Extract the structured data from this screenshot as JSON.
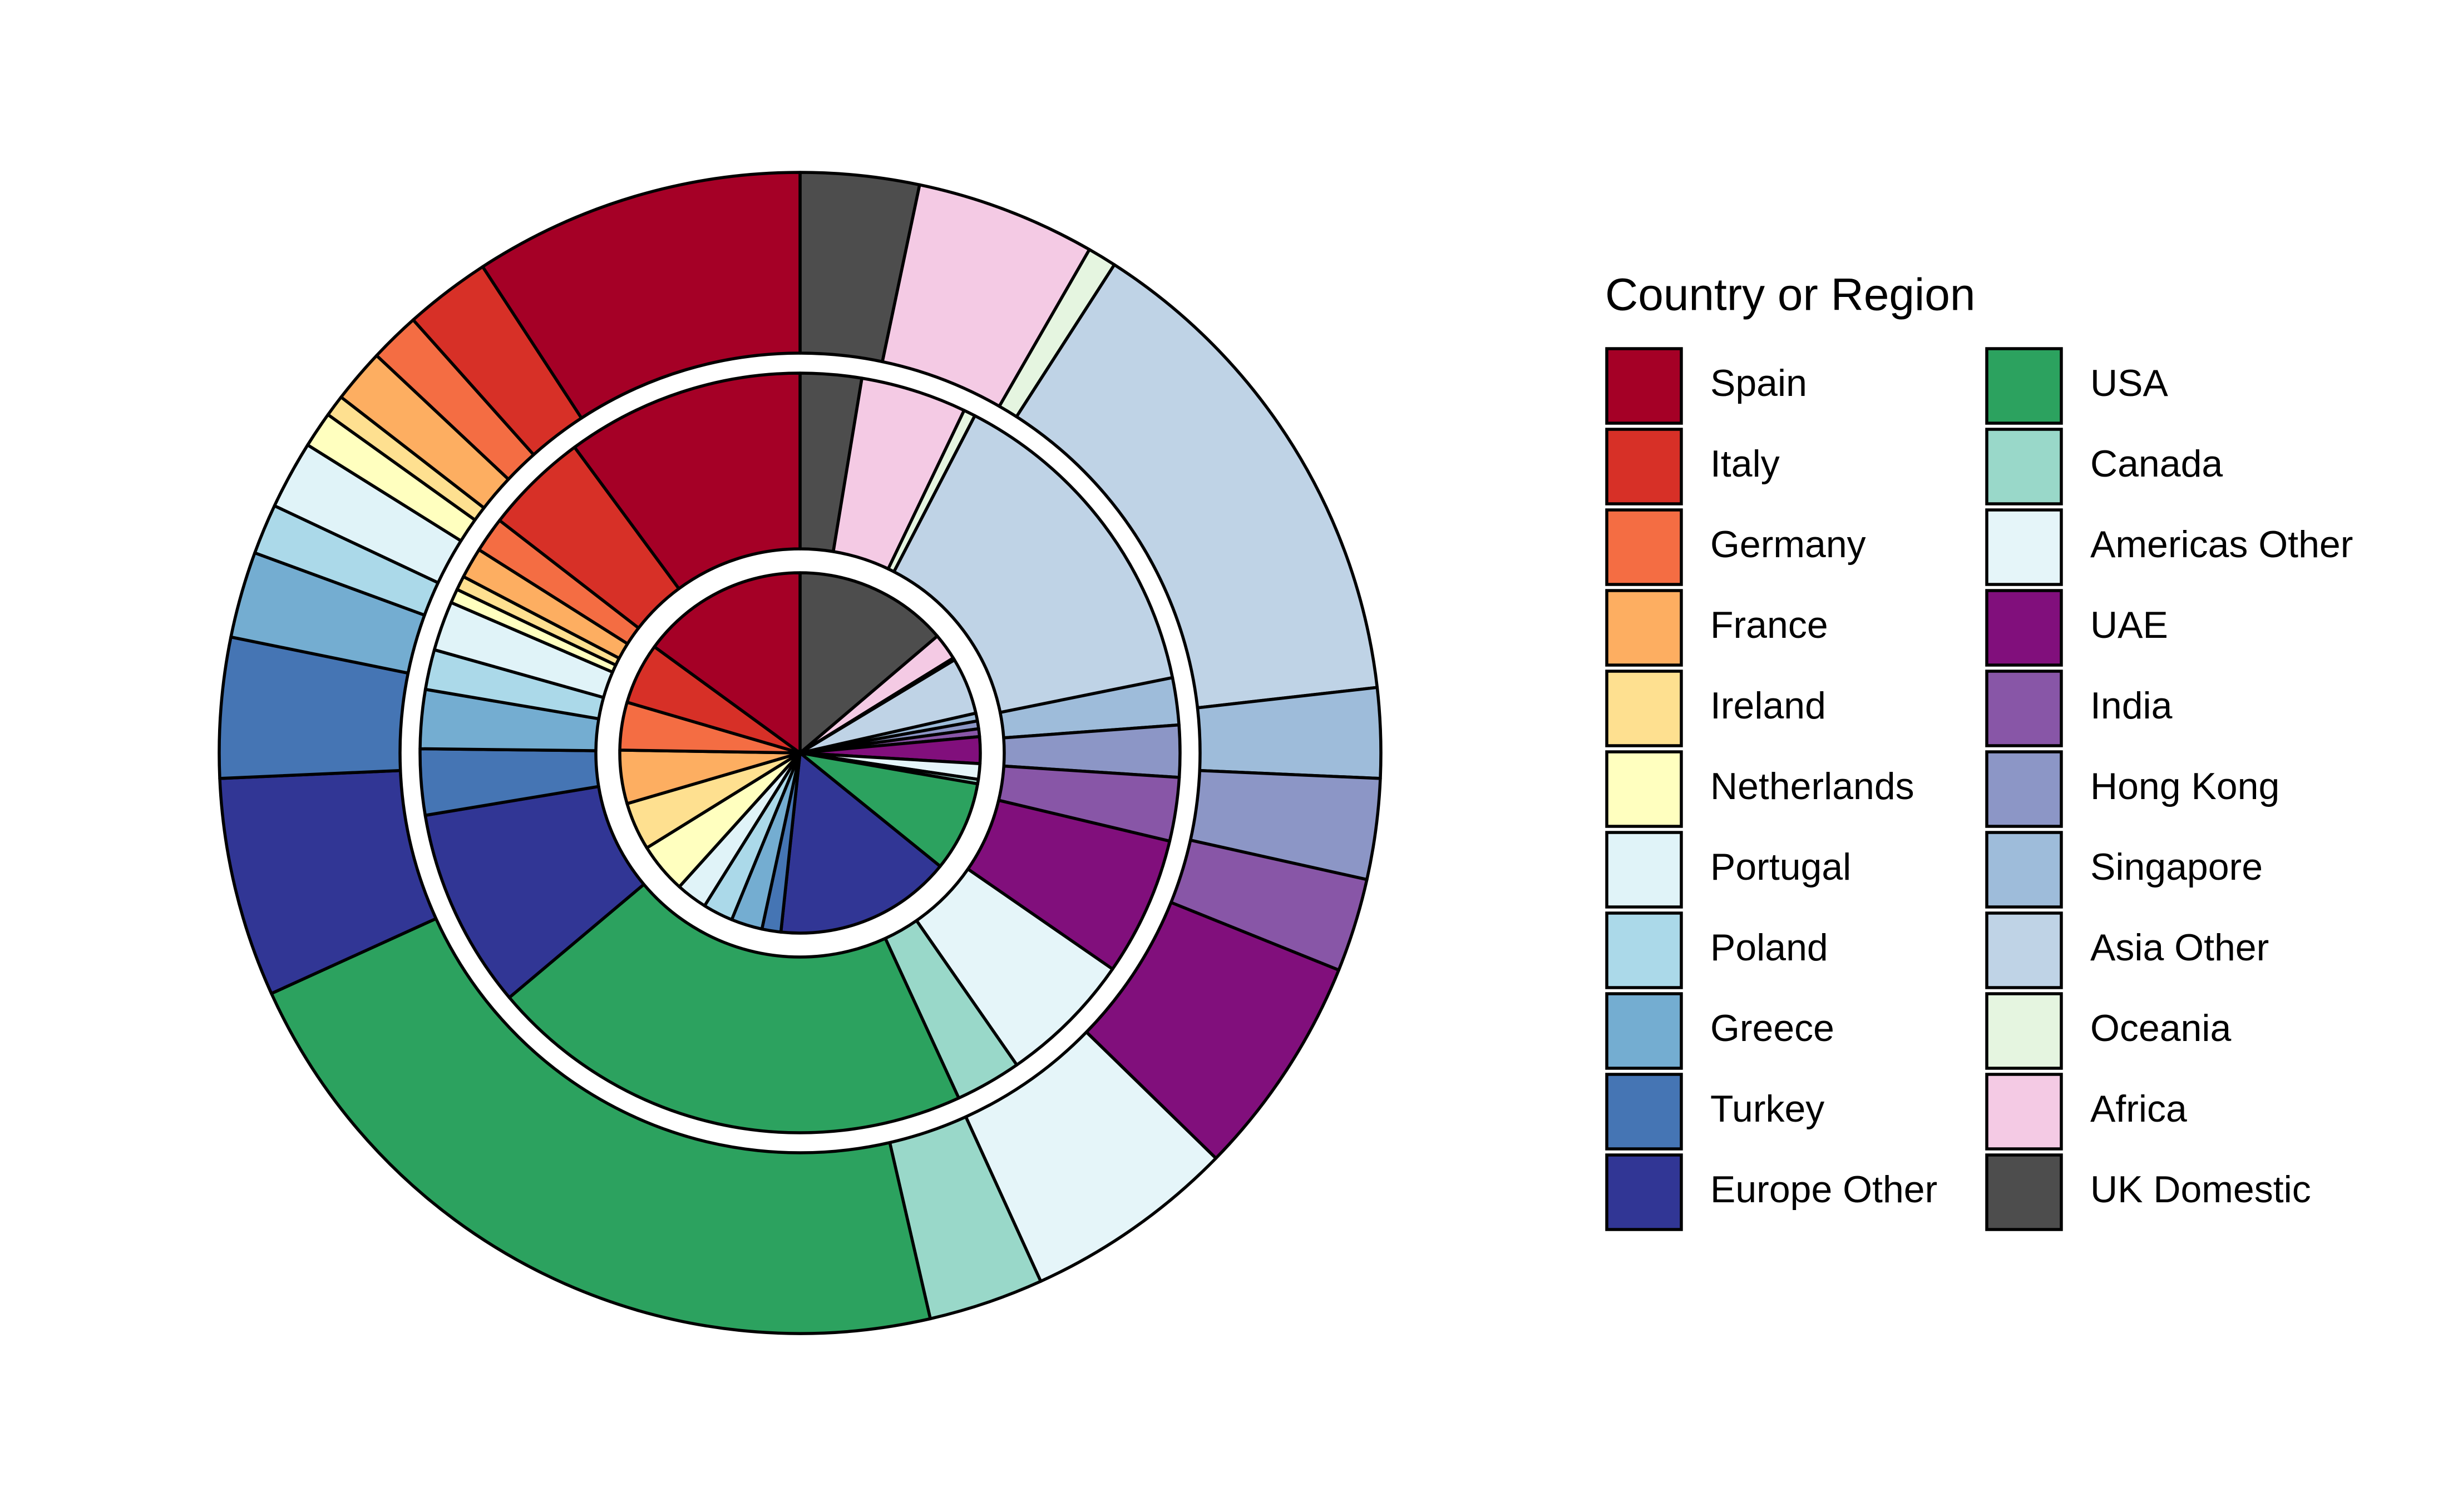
{
  "chart_data": {
    "type": "nested-donut",
    "legend_title": "Country or Region",
    "categories": [
      "Spain",
      "Italy",
      "Germany",
      "France",
      "Ireland",
      "Netherlands",
      "Portugal",
      "Poland",
      "Greece",
      "Turkey",
      "Europe Other",
      "USA",
      "Canada",
      "Americas Other",
      "UAE",
      "India",
      "Hong Kong",
      "Singapore",
      "Asia Other",
      "Oceania",
      "Africa",
      "UK Domestic"
    ],
    "colors": [
      "#a50026",
      "#d73027",
      "#f46d43",
      "#fdae61",
      "#fee090",
      "#ffffbf",
      "#e0f3f8",
      "#abd9e9",
      "#74add1",
      "#4575b4",
      "#313695",
      "#2ca25f",
      "#99d8c9",
      "#e5f5f9",
      "#810f7c",
      "#8856a7",
      "#8c96c6",
      "#9ebcda",
      "#bfd3e6",
      "#e5f5e0",
      "#f4cae4",
      "#4d4d4d"
    ],
    "series": [
      {
        "values": [
          15,
          5.5,
          4.3,
          4.8,
          4.3,
          4.5,
          2.8,
          2.7,
          2.8,
          1.7,
          15.9,
          8.1,
          0.4,
          1.4,
          2.4,
          0.7,
          0.7,
          0.7,
          5.1,
          0.2,
          2.4,
          13.8
        ]
      },
      {
        "values": [
          10.1,
          4.4,
          1.5,
          1.3,
          0.6,
          0.6,
          2.1,
          1.7,
          2.5,
          2.8,
          8.5,
          20.7,
          2.8,
          5.7,
          5.9,
          2.7,
          2.2,
          2.0,
          14.2,
          0.5,
          4.5,
          2.6
        ]
      },
      {
        "values": [
          9.2,
          2.4,
          1.4,
          1.5,
          0.6,
          1.0,
          1.9,
          1.4,
          2.4,
          3.9,
          6.1,
          21.8,
          3.2,
          5.9,
          6.2,
          2.6,
          2.8,
          2.5,
          14.1,
          0.8,
          5.0,
          3.3
        ]
      }
    ]
  }
}
